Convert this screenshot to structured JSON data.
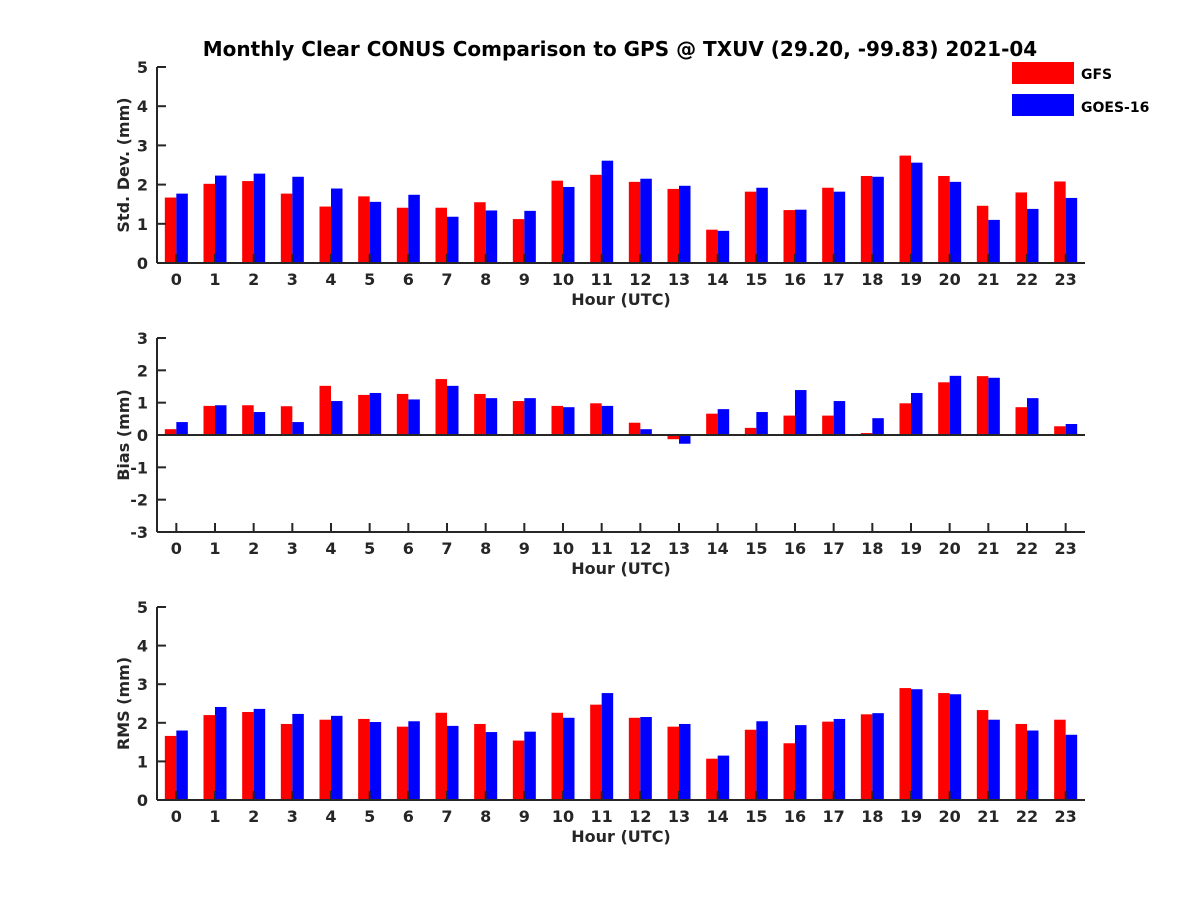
{
  "chart_data": {
    "type": "bar",
    "title": "Monthly Clear CONUS Comparison to GPS @ TXUV (29.20, -99.83) 2021-04",
    "legend": {
      "placement": "top-right",
      "entries": [
        "GFS",
        "GOES-16"
      ]
    },
    "colors": {
      "GFS": "#ff0000",
      "GOES-16": "#0000ff",
      "axis": "#262626"
    },
    "categories": [
      "0",
      "1",
      "2",
      "3",
      "4",
      "5",
      "6",
      "7",
      "8",
      "9",
      "10",
      "11",
      "12",
      "13",
      "14",
      "15",
      "16",
      "17",
      "18",
      "19",
      "20",
      "21",
      "22",
      "23"
    ],
    "panels": [
      {
        "id": "std",
        "ylabel": "Std. Dev. (mm)",
        "xlabel": "Hour (UTC)",
        "ylim": [
          0,
          5
        ],
        "yticks": [
          "0",
          "1",
          "2",
          "3",
          "4",
          "5"
        ],
        "baseline": 0,
        "series": [
          {
            "name": "GFS",
            "values": [
              1.67,
              2.02,
              2.09,
              1.77,
              1.44,
              1.7,
              1.41,
              1.41,
              1.55,
              1.12,
              2.1,
              2.25,
              2.07,
              1.89,
              0.85,
              1.82,
              1.35,
              1.92,
              2.22,
              2.74,
              2.22,
              1.46,
              1.8,
              2.08
            ]
          },
          {
            "name": "GOES-16",
            "values": [
              1.77,
              2.23,
              2.28,
              2.2,
              1.9,
              1.56,
              1.74,
              1.18,
              1.34,
              1.33,
              1.94,
              2.61,
              2.15,
              1.97,
              0.82,
              1.92,
              1.36,
              1.82,
              2.2,
              2.56,
              2.07,
              1.1,
              1.38,
              1.66
            ]
          }
        ]
      },
      {
        "id": "bias",
        "ylabel": "Bias (mm)",
        "xlabel": "Hour (UTC)",
        "ylim": [
          -3,
          3
        ],
        "yticks": [
          "-3",
          "-2",
          "-1",
          "0",
          "1",
          "2",
          "3"
        ],
        "baseline": 0,
        "series": [
          {
            "name": "GFS",
            "values": [
              0.18,
              0.9,
              0.92,
              0.89,
              1.52,
              1.24,
              1.27,
              1.73,
              1.27,
              1.05,
              0.9,
              0.98,
              0.38,
              -0.13,
              0.66,
              0.22,
              0.6,
              0.6,
              0.06,
              0.98,
              1.63,
              1.82,
              0.86,
              0.27
            ]
          },
          {
            "name": "GOES-16",
            "values": [
              0.4,
              0.92,
              0.71,
              0.4,
              1.05,
              1.3,
              1.1,
              1.52,
              1.14,
              1.14,
              0.86,
              0.9,
              0.18,
              -0.27,
              0.8,
              0.71,
              1.39,
              1.05,
              0.52,
              1.3,
              1.83,
              1.77,
              1.14,
              0.34
            ]
          }
        ]
      },
      {
        "id": "rms",
        "ylabel": "RMS (mm)",
        "xlabel": "Hour (UTC)",
        "ylim": [
          0,
          5
        ],
        "yticks": [
          "0",
          "1",
          "2",
          "3",
          "4",
          "5"
        ],
        "baseline": 0,
        "series": [
          {
            "name": "GFS",
            "values": [
              1.66,
              2.2,
              2.28,
              1.97,
              2.08,
              2.1,
              1.9,
              2.26,
              1.97,
              1.54,
              2.26,
              2.47,
              2.13,
              1.9,
              1.07,
              1.82,
              1.47,
              2.03,
              2.22,
              2.9,
              2.77,
              2.33,
              1.97,
              2.08
            ]
          },
          {
            "name": "GOES-16",
            "values": [
              1.8,
              2.41,
              2.36,
              2.23,
              2.18,
              2.02,
              2.04,
              1.92,
              1.76,
              1.77,
              2.13,
              2.77,
              2.15,
              1.97,
              1.15,
              2.04,
              1.94,
              2.1,
              2.25,
              2.87,
              2.74,
              2.08,
              1.8,
              1.69
            ]
          }
        ]
      }
    ]
  }
}
